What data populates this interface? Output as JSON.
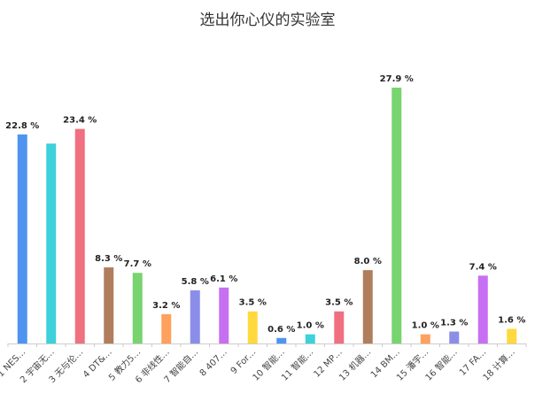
{
  "chart_data": {
    "type": "bar",
    "title": "选出你心仪的实验室",
    "xlabel": "",
    "ylabel": "",
    "ylim": [
      0,
      30
    ],
    "grid": false,
    "legend": "none",
    "categories": [
      "1 NES…",
      "2 宇宙无…",
      "3 无与伦…",
      "4 DT&…",
      "5 教力5…",
      "6 非线性…",
      "7 智能自…",
      "8 407…",
      "9 For…",
      "10 智能…",
      "11 智能…",
      "12 MP…",
      "13 机器…",
      "14 BM…",
      "15 潘宇…",
      "16 智能…",
      "17 FA…",
      "18 计算…"
    ],
    "values": [
      22.8,
      21.8,
      23.4,
      8.3,
      7.7,
      3.2,
      5.8,
      6.1,
      3.5,
      0.6,
      1.0,
      3.5,
      8.0,
      27.9,
      1.0,
      1.3,
      7.4,
      1.6
    ],
    "data_labels": [
      "22.8 %",
      "",
      "23.4 %",
      "8.3 %",
      "7.7 %",
      "3.2 %",
      "5.8 %",
      "6.1 %",
      "3.5 %",
      "0.6 %",
      "1.0 %",
      "3.5 %",
      "8.0 %",
      "27.9 %",
      "1.0 %",
      "1.3 %",
      "7.4 %",
      "1.6 %"
    ],
    "colors": [
      "#4f94f0",
      "#3cd1db",
      "#f07080",
      "#b07e5c",
      "#78d46e",
      "#ffa05c",
      "#8b8ee8",
      "#c76ff2",
      "#ffd93d",
      "#4f94f0",
      "#3cd1db",
      "#f07080",
      "#b07e5c",
      "#78d46e",
      "#ffa05c",
      "#8b8ee8",
      "#c76ff2",
      "#ffd93d"
    ]
  }
}
